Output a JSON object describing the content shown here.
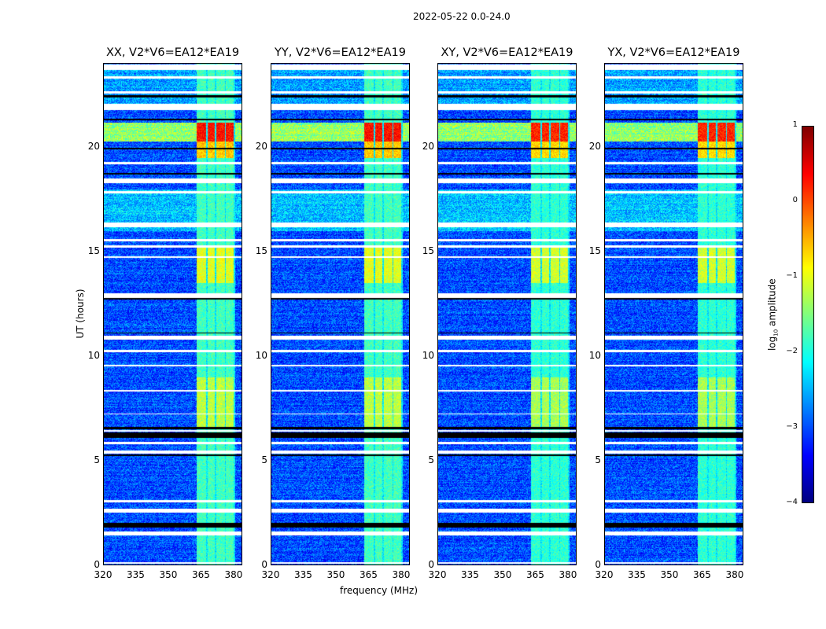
{
  "chart_data": {
    "type": "heatmap",
    "suptitle": "2022-05-22 0.0-24.0",
    "xlabel": "frequency (MHz)",
    "ylabel": "UT (hours)",
    "xlim": [
      320,
      384
    ],
    "ylim": [
      0,
      24
    ],
    "xticks": [
      "320",
      "335",
      "350",
      "365",
      "380"
    ],
    "xtick_values": [
      320,
      335,
      350,
      365,
      380
    ],
    "yticks": [
      "0",
      "5",
      "10",
      "15",
      "20"
    ],
    "ytick_values": [
      0,
      5,
      10,
      15,
      20
    ],
    "panels": [
      {
        "title": "XX, V2*V6=EA12*EA19"
      },
      {
        "title": "YY, V2*V6=EA12*EA19"
      },
      {
        "title": "XY, V2*V6=EA12*EA19"
      },
      {
        "title": "YX, V2*V6=EA12*EA19"
      }
    ],
    "colorbar": {
      "label_main": "log",
      "label_sub": "10",
      "label_rest": " amplitude",
      "range": [
        -4,
        1
      ],
      "ticks": [
        "1",
        "0",
        "−1",
        "−2",
        "−3",
        "−4"
      ],
      "tick_values": [
        1,
        0,
        -1,
        -2,
        -3,
        -4
      ],
      "colormap": "jet"
    },
    "background_level": -3,
    "rfi_subbands_mhz": [
      [
        363,
        367.5
      ],
      [
        368,
        371.5
      ],
      [
        372,
        376
      ],
      [
        376.5,
        380
      ]
    ],
    "rfi_level": -1.8,
    "rfi_bursts": [
      {
        "hours": [
          6.5,
          9
        ],
        "level": -1.2
      },
      {
        "hours": [
          13.5,
          15.2
        ],
        "level": -1.0
      },
      {
        "hours": [
          20.3,
          21.2
        ],
        "level": 0.3
      },
      {
        "hours": [
          19.5,
          20.3
        ],
        "level": -0.6
      }
    ],
    "flagged_hours": [
      [
        0.05,
        0.15
      ],
      [
        1.4,
        1.6
      ],
      [
        2.5,
        2.7
      ],
      [
        3.0,
        3.1
      ],
      [
        5.35,
        5.5
      ],
      [
        5.8,
        5.9
      ],
      [
        6.4,
        6.45
      ],
      [
        7.2,
        7.25
      ],
      [
        8.3,
        8.4
      ],
      [
        9.5,
        9.6
      ],
      [
        10.2,
        10.3
      ],
      [
        10.8,
        11.0
      ],
      [
        12.8,
        13.0
      ],
      [
        14.7,
        14.8
      ],
      [
        15.2,
        15.3
      ],
      [
        15.5,
        15.6
      ],
      [
        16.2,
        16.4
      ],
      [
        17.8,
        17.9
      ],
      [
        18.3,
        18.5
      ],
      [
        19.2,
        19.3
      ],
      [
        21.8,
        22.1
      ],
      [
        22.6,
        22.7
      ],
      [
        23.3,
        23.4
      ],
      [
        23.7,
        24
      ]
    ],
    "dead_hours": [
      [
        1.8,
        2.0
      ],
      [
        5.2,
        5.3
      ],
      [
        6.1,
        6.35
      ],
      [
        6.5,
        6.6
      ],
      [
        11.1,
        11.15
      ],
      [
        12.7,
        12.8
      ],
      [
        18.7,
        18.8
      ],
      [
        19.9,
        20.0
      ],
      [
        21.3,
        21.4
      ],
      [
        22.4,
        22.5
      ]
    ]
  }
}
